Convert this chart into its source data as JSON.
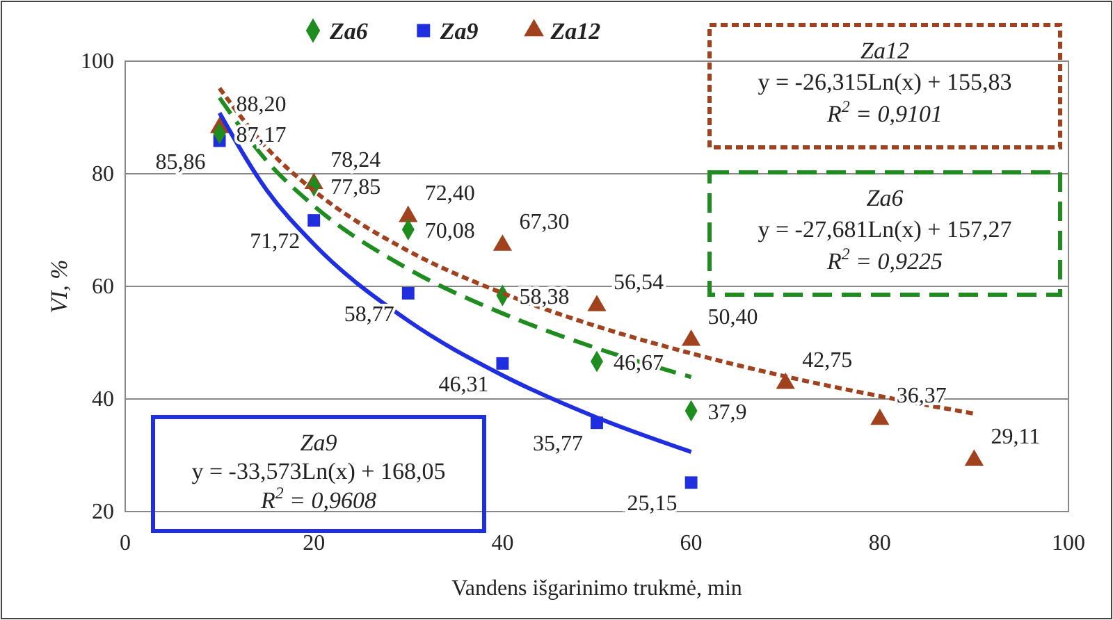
{
  "chart_data": {
    "type": "scatter",
    "xlabel": "Vandens išgarinimo trukmė, min",
    "ylabel": "VI, %",
    "xlim": [
      0,
      100
    ],
    "xticks": [
      0,
      20,
      40,
      60,
      80,
      100
    ],
    "ylim": [
      20,
      100
    ],
    "yticks": [
      20,
      40,
      60,
      80,
      100
    ],
    "grid": "y",
    "legend": "top",
    "series": [
      {
        "name": "Za6",
        "color": "#1e8c1e",
        "marker": "diamond",
        "x": [
          10,
          20,
          30,
          40,
          50,
          60
        ],
        "values": [
          87.17,
          77.85,
          70.08,
          58.38,
          46.67,
          37.9
        ],
        "value_labels": [
          "87,17",
          "77,85",
          "70,08",
          "58,38",
          "46,67",
          "37,9"
        ]
      },
      {
        "name": "Za9",
        "color": "#1f2fe0",
        "marker": "square",
        "x": [
          10,
          20,
          30,
          40,
          50,
          60
        ],
        "values": [
          85.86,
          71.72,
          58.77,
          46.31,
          35.77,
          25.15
        ],
        "value_labels": [
          "85,86",
          "71,72",
          "58,77",
          "46,31",
          "35,77",
          "25,15"
        ]
      },
      {
        "name": "Za12",
        "color": "#a0421e",
        "marker": "triangle",
        "x": [
          10,
          20,
          30,
          40,
          50,
          60,
          70,
          80,
          90
        ],
        "values": [
          88.2,
          78.24,
          72.4,
          67.3,
          56.54,
          50.4,
          42.75,
          36.37,
          29.11
        ],
        "value_labels": [
          "88,20",
          "78,24",
          "72,40",
          "67,30",
          "56,54",
          "50,40",
          "42,75",
          "36,37",
          "29,11"
        ]
      },
      {
        "type": "line",
        "color": "#1f8c1f",
        "line_style": "dashed",
        "x": [
          10,
          15,
          20,
          30,
          40,
          50,
          60
        ],
        "values": [
          93.5,
          82.3,
          74.3,
          63.1,
          55.2,
          49.0,
          43.9
        ]
      },
      {
        "type": "line",
        "color": "#1f2fe0",
        "line_style": "solid",
        "x": [
          10,
          15,
          20,
          30,
          40,
          50,
          60
        ],
        "values": [
          90.8,
          77.1,
          67.5,
          53.9,
          44.2,
          36.7,
          30.6
        ]
      },
      {
        "type": "line",
        "color": "#a0421e",
        "line_style": "dotted",
        "x": [
          10,
          15,
          20,
          30,
          40,
          50,
          60,
          70,
          80,
          90
        ],
        "values": [
          95.2,
          84.6,
          77.0,
          66.3,
          58.8,
          52.9,
          48.1,
          44.0,
          40.5,
          37.4
        ]
      }
    ],
    "annotations": [
      "Za12",
      "y = -26,315Ln(x) + 155,83",
      "R$^{2}$ = 0,9101",
      "Za6",
      "y = -27,681Ln(x) + 157,27",
      "R$^{2}$ = 0,9225",
      "Za9",
      "y = -33,573Ln(x) + 168,05",
      "R$^{2}$ = 0,9608"
    ]
  }
}
